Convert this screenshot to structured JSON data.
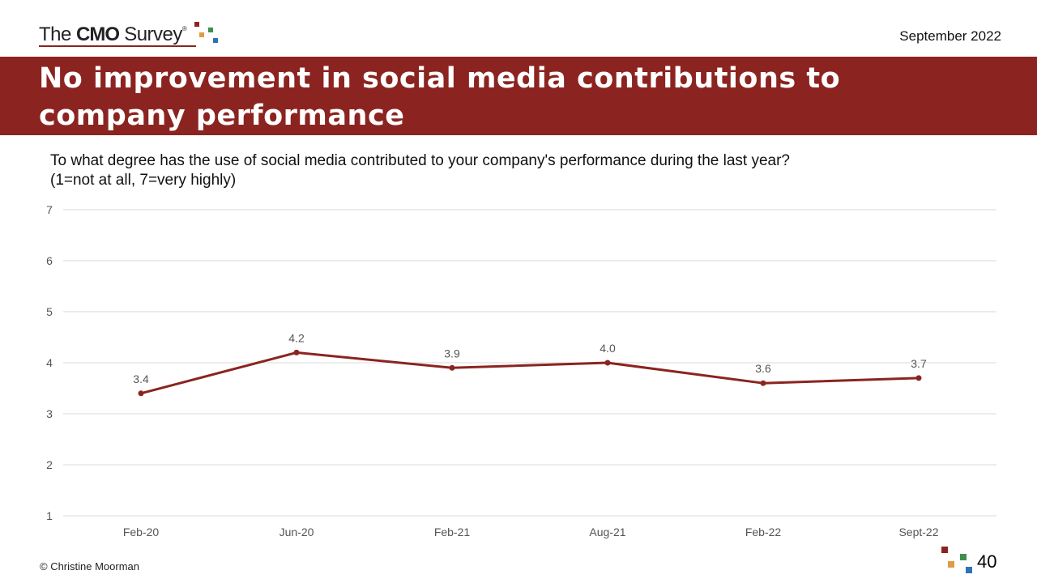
{
  "header": {
    "logo": {
      "the": "The",
      "cmo": "CMO",
      "survey": "Survey",
      "reg": "®"
    },
    "date": "September 2022"
  },
  "banner": {
    "title": "No improvement in social media contributions to company performance"
  },
  "question": {
    "line1": "To what degree has the use of social media contributed to your company's performance during the last year?",
    "line2": "(1=not at all, 7=very highly)"
  },
  "footer": {
    "copyright": "© Christine Moorman",
    "page_number": "40"
  },
  "colors": {
    "brand_red": "#8b2420",
    "line": "#8b2420",
    "grid": "#d9d9d9",
    "logo_orange": "#e29b45",
    "logo_green": "#3f8f4a",
    "logo_blue": "#2e74b5"
  },
  "chart_data": {
    "type": "line",
    "categories": [
      "Feb-20",
      "Jun-20",
      "Feb-21",
      "Aug-21",
      "Feb-22",
      "Sept-22"
    ],
    "series": [
      {
        "values": [
          3.4,
          4.2,
          3.9,
          4.0,
          3.6,
          3.7
        ]
      }
    ],
    "data_labels": [
      "3.4",
      "4.2",
      "3.9",
      "4.0",
      "3.6",
      "3.7"
    ],
    "ylim": [
      1,
      7
    ],
    "yticks": [
      1,
      2,
      3,
      4,
      5,
      6,
      7
    ],
    "grid": true,
    "legend": false,
    "xlabel": "",
    "ylabel": ""
  }
}
